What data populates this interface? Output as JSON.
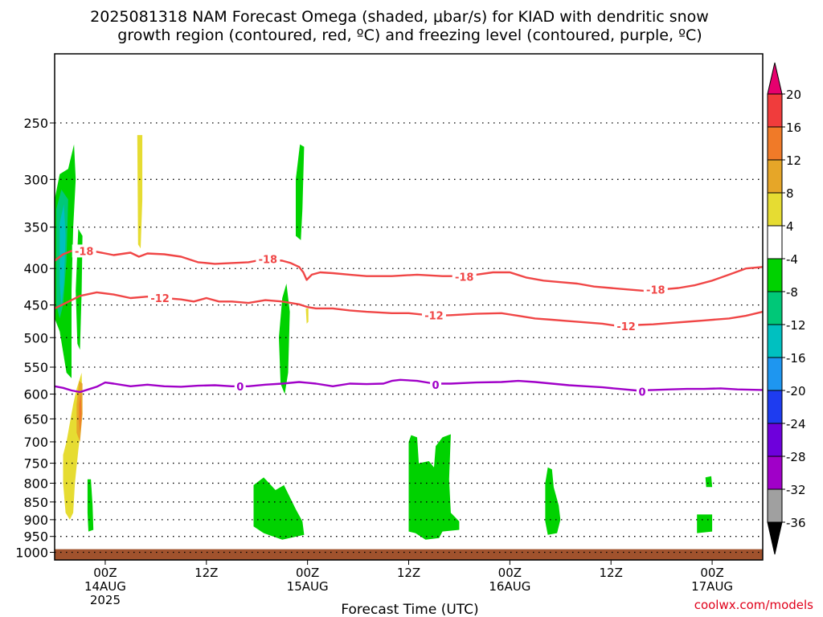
{
  "title_line1": "2025081318 NAM Forecast Omega (shaded, μbar/s) for KIAD with dendritic snow",
  "title_line2": "growth region (contoured, red, ºC) and freezing level (contoured, purple, ºC)",
  "watermark": "coolwx.com/models",
  "chart_data": {
    "type": "heatmap",
    "xlabel": "Forecast Time (UTC)",
    "x_range_hours": [
      0,
      84
    ],
    "y_axis": {
      "scale": "log-pressure",
      "range_hPa": [
        200,
        1025
      ],
      "reversed": true,
      "ticks": [
        250,
        300,
        350,
        400,
        450,
        500,
        550,
        600,
        650,
        700,
        750,
        800,
        850,
        900,
        950,
        1000
      ]
    },
    "x_ticks": [
      {
        "hour": 6,
        "label": "00Z",
        "sub1": "14AUG",
        "sub2": "2025"
      },
      {
        "hour": 18,
        "label": "12Z",
        "sub1": "",
        "sub2": ""
      },
      {
        "hour": 30,
        "label": "00Z",
        "sub1": "15AUG",
        "sub2": ""
      },
      {
        "hour": 42,
        "label": "12Z",
        "sub1": "",
        "sub2": ""
      },
      {
        "hour": 54,
        "label": "00Z",
        "sub1": "16AUG",
        "sub2": ""
      },
      {
        "hour": 66,
        "label": "12Z",
        "sub1": "",
        "sub2": ""
      },
      {
        "hour": 78,
        "label": "00Z",
        "sub1": "17AUG",
        "sub2": ""
      }
    ],
    "grid": true,
    "colorbar": {
      "labels": [
        "20",
        "16",
        "12",
        "8",
        "4",
        "-4",
        "-8",
        "-12",
        "-16",
        "-20",
        "-24",
        "-28",
        "-32",
        "-36"
      ],
      "colors": [
        "#f03c3c",
        "#f07a28",
        "#e6a628",
        "#e6dc32",
        "#ffffff",
        "#00d200",
        "#00c878",
        "#00c0c0",
        "#1e96f0",
        "#1e3cf0",
        "#6e00dc",
        "#a000c8",
        "#a0a0a0"
      ],
      "top_triangle": "#e6006e",
      "bottom_triangle": "#000000"
    },
    "surface_band": {
      "color": "#a0522d",
      "top_hPa": 990
    },
    "omega_regions": [
      {
        "color": "#00d200",
        "points": [
          [
            0,
            320
          ],
          [
            0.6,
            295
          ],
          [
            1.6,
            290
          ],
          [
            2.3,
            268
          ],
          [
            2.5,
            300
          ],
          [
            2.2,
            350
          ],
          [
            2.0,
            430
          ],
          [
            2.0,
            570
          ],
          [
            1.4,
            560
          ],
          [
            0.6,
            490
          ],
          [
            0,
            470
          ]
        ]
      },
      {
        "color": "#00c878",
        "points": [
          [
            0.2,
            330
          ],
          [
            0.8,
            310
          ],
          [
            1.6,
            320
          ],
          [
            1.4,
            390
          ],
          [
            1.0,
            450
          ],
          [
            0.6,
            470
          ],
          [
            0.2,
            450
          ]
        ]
      },
      {
        "color": "#00c0c0",
        "points": [
          [
            0.6,
            345
          ],
          [
            1.1,
            325
          ],
          [
            1.3,
            360
          ],
          [
            1.1,
            420
          ],
          [
            0.8,
            450
          ],
          [
            0.6,
            420
          ]
        ]
      },
      {
        "color": "#00d200",
        "points": [
          [
            2.5,
            430
          ],
          [
            2.8,
            352
          ],
          [
            3.3,
            360
          ],
          [
            3.2,
            430
          ],
          [
            3.0,
            520
          ],
          [
            2.7,
            510
          ]
        ]
      },
      {
        "color": "#00d200",
        "points": [
          [
            3.9,
            790
          ],
          [
            4.3,
            790
          ],
          [
            4.5,
            860
          ],
          [
            4.6,
            930
          ],
          [
            4.0,
            935
          ],
          [
            3.9,
            880
          ]
        ]
      },
      {
        "color": "#e6dc32",
        "points": [
          [
            9.8,
            260
          ],
          [
            10.4,
            260
          ],
          [
            10.4,
            320
          ],
          [
            10.2,
            375
          ],
          [
            9.9,
            370
          ]
        ]
      },
      {
        "color": "#00d200",
        "points": [
          [
            28.6,
            300
          ],
          [
            29.1,
            268
          ],
          [
            29.6,
            270
          ],
          [
            29.4,
            330
          ],
          [
            29.2,
            365
          ],
          [
            28.6,
            360
          ]
        ]
      },
      {
        "color": "#00d200",
        "points": [
          [
            26.6,
            500
          ],
          [
            27.0,
            440
          ],
          [
            27.5,
            420
          ],
          [
            27.9,
            460
          ],
          [
            27.7,
            560
          ],
          [
            27.3,
            600
          ],
          [
            26.8,
            580
          ]
        ]
      },
      {
        "color": "#e6dc32",
        "points": [
          [
            29.8,
            455
          ],
          [
            30.1,
            455
          ],
          [
            30.1,
            475
          ],
          [
            29.9,
            478
          ]
        ]
      },
      {
        "color": "#00d200",
        "points": [
          [
            23.6,
            805
          ],
          [
            24.8,
            785
          ],
          [
            26.2,
            818
          ],
          [
            27.2,
            805
          ],
          [
            28.6,
            870
          ],
          [
            29.4,
            905
          ],
          [
            29.6,
            945
          ],
          [
            27.0,
            960
          ],
          [
            24.8,
            940
          ],
          [
            23.6,
            920
          ]
        ]
      },
      {
        "color": "#00d200",
        "points": [
          [
            42.0,
            700
          ],
          [
            42.3,
            685
          ],
          [
            43.0,
            690
          ],
          [
            43.2,
            750
          ],
          [
            44.4,
            745
          ],
          [
            45.0,
            760
          ],
          [
            45.2,
            710
          ],
          [
            46.0,
            690
          ],
          [
            47.0,
            683
          ],
          [
            46.8,
            790
          ],
          [
            47.0,
            880
          ],
          [
            48.0,
            905
          ],
          [
            48.0,
            930
          ],
          [
            46.0,
            935
          ],
          [
            45.6,
            955
          ],
          [
            44.0,
            960
          ],
          [
            42.8,
            940
          ],
          [
            42.0,
            935
          ]
        ]
      },
      {
        "color": "#00d200",
        "points": [
          [
            58.2,
            800
          ],
          [
            58.5,
            760
          ],
          [
            59.0,
            765
          ],
          [
            59.2,
            810
          ],
          [
            59.8,
            860
          ],
          [
            60.0,
            900
          ],
          [
            59.6,
            940
          ],
          [
            58.5,
            945
          ],
          [
            58.2,
            905
          ]
        ]
      },
      {
        "color": "#00d200",
        "points": [
          [
            77.2,
            785
          ],
          [
            77.9,
            782
          ],
          [
            78.0,
            810
          ],
          [
            77.3,
            810
          ]
        ]
      },
      {
        "color": "#00d200",
        "points": [
          [
            76.2,
            885
          ],
          [
            78.0,
            885
          ],
          [
            78.0,
            935
          ],
          [
            76.2,
            940
          ]
        ]
      },
      {
        "color": "#e6dc32",
        "points": [
          [
            1.0,
            730
          ],
          [
            1.4,
            700
          ],
          [
            2.2,
            620
          ],
          [
            2.6,
            590
          ],
          [
            3.2,
            560
          ],
          [
            3.3,
            640
          ],
          [
            2.8,
            720
          ],
          [
            2.4,
            800
          ],
          [
            2.2,
            880
          ],
          [
            1.8,
            900
          ],
          [
            1.3,
            880
          ],
          [
            1.0,
            800
          ]
        ]
      },
      {
        "color": "#e6a628",
        "points": [
          [
            2.6,
            620
          ],
          [
            2.9,
            575
          ],
          [
            3.3,
            580
          ],
          [
            3.3,
            640
          ],
          [
            3.0,
            700
          ],
          [
            2.6,
            680
          ]
        ]
      },
      {
        "color": "#f07a28",
        "points": [
          [
            2.9,
            620
          ],
          [
            3.1,
            600
          ],
          [
            3.2,
            640
          ],
          [
            3.0,
            680
          ],
          [
            2.9,
            650
          ]
        ]
      }
    ],
    "contours": [
      {
        "value": "-18",
        "color": "#f04646",
        "label_positions": [
          [
            3.5,
            378
          ],
          [
            25.3,
            388
          ],
          [
            48.6,
            411
          ],
          [
            71.3,
            428
          ]
        ],
        "points": [
          [
            0,
            390
          ],
          [
            1,
            382
          ],
          [
            2,
            378
          ],
          [
            3,
            378
          ],
          [
            5,
            379
          ],
          [
            7,
            383
          ],
          [
            9,
            380
          ],
          [
            10,
            385
          ],
          [
            11,
            381
          ],
          [
            13,
            382
          ],
          [
            15,
            385
          ],
          [
            17,
            392
          ],
          [
            19,
            394
          ],
          [
            21,
            393
          ],
          [
            23,
            392
          ],
          [
            25,
            388
          ],
          [
            27,
            390
          ],
          [
            28,
            393
          ],
          [
            29,
            398
          ],
          [
            29.5,
            405
          ],
          [
            29.9,
            415
          ],
          [
            30.5,
            408
          ],
          [
            31.5,
            405
          ],
          [
            33,
            406
          ],
          [
            35,
            408
          ],
          [
            37,
            410
          ],
          [
            40,
            410
          ],
          [
            43,
            408
          ],
          [
            46,
            410
          ],
          [
            48,
            410
          ],
          [
            50,
            408
          ],
          [
            52,
            405
          ],
          [
            54,
            405
          ],
          [
            56,
            412
          ],
          [
            58,
            416
          ],
          [
            60,
            418
          ],
          [
            62,
            420
          ],
          [
            64,
            424
          ],
          [
            66,
            426
          ],
          [
            68,
            428
          ],
          [
            70,
            430
          ],
          [
            72,
            428
          ],
          [
            74,
            426
          ],
          [
            76,
            422
          ],
          [
            78,
            416
          ],
          [
            80,
            408
          ],
          [
            82,
            400
          ],
          [
            84,
            398
          ]
        ]
      },
      {
        "value": "-12",
        "color": "#f04646",
        "label_positions": [
          [
            12.5,
            440
          ],
          [
            45.0,
            465
          ],
          [
            67.8,
            482
          ]
        ],
        "points": [
          [
            0,
            455
          ],
          [
            2,
            443
          ],
          [
            3,
            437
          ],
          [
            5,
            432
          ],
          [
            7,
            435
          ],
          [
            9,
            440
          ],
          [
            11,
            438
          ],
          [
            13,
            440
          ],
          [
            15,
            442
          ],
          [
            16.5,
            445
          ],
          [
            18,
            440
          ],
          [
            19.5,
            445
          ],
          [
            21,
            445
          ],
          [
            23,
            447
          ],
          [
            25,
            443
          ],
          [
            27,
            445
          ],
          [
            29,
            449
          ],
          [
            30,
            453
          ],
          [
            31,
            455
          ],
          [
            33,
            455
          ],
          [
            35,
            458
          ],
          [
            37,
            460
          ],
          [
            40,
            462
          ],
          [
            42,
            462
          ],
          [
            45,
            466
          ],
          [
            47,
            465
          ],
          [
            50,
            463
          ],
          [
            53,
            462
          ],
          [
            55,
            466
          ],
          [
            57,
            470
          ],
          [
            59,
            472
          ],
          [
            61,
            474
          ],
          [
            63,
            476
          ],
          [
            65,
            478
          ],
          [
            67,
            482
          ],
          [
            69,
            480
          ],
          [
            71,
            479
          ],
          [
            73,
            477
          ],
          [
            75,
            475
          ],
          [
            77,
            473
          ],
          [
            80,
            470
          ],
          [
            82,
            466
          ],
          [
            84,
            460
          ]
        ]
      },
      {
        "value": "0",
        "color": "#a000c8",
        "label_positions": [
          [
            22.0,
            585
          ],
          [
            45.2,
            582
          ],
          [
            69.7,
            595
          ]
        ],
        "points": [
          [
            0,
            585
          ],
          [
            1,
            588
          ],
          [
            2,
            593
          ],
          [
            3,
            596
          ],
          [
            4,
            591
          ],
          [
            5,
            586
          ],
          [
            6,
            578
          ],
          [
            7,
            580
          ],
          [
            9,
            585
          ],
          [
            11,
            582
          ],
          [
            13,
            585
          ],
          [
            15,
            586
          ],
          [
            17,
            584
          ],
          [
            19,
            583
          ],
          [
            21,
            585
          ],
          [
            23,
            585
          ],
          [
            25,
            582
          ],
          [
            27,
            580
          ],
          [
            29,
            577
          ],
          [
            31,
            580
          ],
          [
            33,
            585
          ],
          [
            35,
            580
          ],
          [
            37,
            581
          ],
          [
            39,
            580
          ],
          [
            40,
            575
          ],
          [
            41,
            573
          ],
          [
            43,
            575
          ],
          [
            45,
            580
          ],
          [
            47,
            580
          ],
          [
            50,
            578
          ],
          [
            53,
            577
          ],
          [
            55,
            575
          ],
          [
            57,
            577
          ],
          [
            59,
            580
          ],
          [
            61,
            583
          ],
          [
            63,
            585
          ],
          [
            65,
            587
          ],
          [
            67,
            590
          ],
          [
            69,
            593
          ],
          [
            71,
            592
          ],
          [
            73,
            591
          ],
          [
            75,
            590
          ],
          [
            77,
            590
          ],
          [
            79,
            589
          ],
          [
            81,
            591
          ],
          [
            84,
            592
          ]
        ]
      }
    ]
  }
}
